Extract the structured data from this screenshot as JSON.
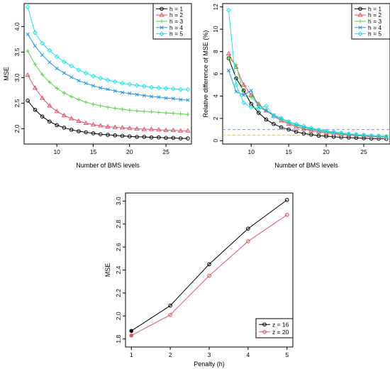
{
  "chart_data": [
    {
      "type": "line",
      "title": "",
      "xlabel": "Number of BMS levels",
      "ylabel": "MSE",
      "xlim": [
        5.5,
        28.5
      ],
      "ylim": [
        1.7,
        4.45
      ],
      "xticks": [
        10,
        15,
        20,
        25
      ],
      "yticks": [
        2.0,
        2.5,
        3.0,
        3.5,
        4.0
      ],
      "ytick_labels": [
        "2.0",
        "2.5",
        "3.0",
        "3.5",
        "4.0"
      ],
      "legend_position": "top-right",
      "x": [
        6,
        7,
        8,
        9,
        10,
        11,
        12,
        13,
        14,
        15,
        16,
        17,
        18,
        19,
        20,
        21,
        22,
        23,
        24,
        25,
        26,
        27,
        28
      ],
      "series": [
        {
          "name": "h =  1",
          "color": "#000000",
          "marker": "circle",
          "values": [
            2.55,
            2.37,
            2.24,
            2.14,
            2.07,
            2.02,
            1.98,
            1.95,
            1.93,
            1.91,
            1.89,
            1.88,
            1.87,
            1.86,
            1.85,
            1.84,
            1.84,
            1.83,
            1.83,
            1.82,
            1.82,
            1.81,
            1.81
          ]
        },
        {
          "name": "h =  2",
          "color": "#DF536B",
          "marker": "triangle",
          "values": [
            3.05,
            2.8,
            2.6,
            2.45,
            2.34,
            2.26,
            2.2,
            2.15,
            2.11,
            2.08,
            2.06,
            2.04,
            2.03,
            2.02,
            2.01,
            2.0,
            1.99,
            1.99,
            1.98,
            1.97,
            1.97,
            1.96,
            1.96
          ]
        },
        {
          "name": "h =  3",
          "color": "#61D04F",
          "marker": "plus",
          "values": [
            3.52,
            3.26,
            3.06,
            2.91,
            2.79,
            2.7,
            2.63,
            2.57,
            2.52,
            2.48,
            2.45,
            2.42,
            2.4,
            2.38,
            2.36,
            2.35,
            2.34,
            2.33,
            2.32,
            2.31,
            2.3,
            2.29,
            2.28
          ]
        },
        {
          "name": "h =  4",
          "color": "#2297E6",
          "marker": "cross",
          "values": [
            3.85,
            3.62,
            3.44,
            3.3,
            3.18,
            3.09,
            3.01,
            2.94,
            2.89,
            2.84,
            2.8,
            2.77,
            2.74,
            2.71,
            2.69,
            2.67,
            2.65,
            2.63,
            2.62,
            2.6,
            2.59,
            2.57,
            2.56
          ]
        },
        {
          "name": "h =  5",
          "color": "#28E2E5",
          "marker": "diamond",
          "values": [
            4.38,
            3.88,
            3.67,
            3.53,
            3.41,
            3.31,
            3.23,
            3.15,
            3.09,
            3.03,
            2.99,
            2.95,
            2.92,
            2.89,
            2.87,
            2.85,
            2.83,
            2.81,
            2.8,
            2.79,
            2.78,
            2.77,
            2.77
          ]
        }
      ]
    },
    {
      "type": "line",
      "title": "",
      "xlabel": "Number of BMS levels",
      "ylabel": "Relative difference of MSE (%)",
      "xlim": [
        6.2,
        28.5
      ],
      "ylim": [
        -0.3,
        12.3
      ],
      "xticks": [
        10,
        15,
        20,
        25
      ],
      "yticks": [
        0,
        2,
        4,
        6,
        8,
        10,
        12
      ],
      "ytick_labels": [
        "0",
        "2",
        "4",
        "6",
        "8",
        "10",
        "12"
      ],
      "reference_lines": [
        {
          "y": 1.0,
          "color": "#9E80D8"
        },
        {
          "y": 0.5,
          "color": "#E8C04A"
        }
      ],
      "legend_position": "top-right",
      "x": [
        7,
        8,
        9,
        10,
        11,
        12,
        13,
        14,
        15,
        16,
        17,
        18,
        19,
        20,
        21,
        22,
        23,
        24,
        25,
        26,
        27,
        28
      ],
      "series": [
        {
          "name": "h =  1",
          "color": "#000000",
          "marker": "circle",
          "values": [
            7.4,
            5.6,
            4.5,
            3.3,
            2.5,
            1.9,
            1.5,
            1.2,
            1.0,
            0.8,
            0.65,
            0.55,
            0.45,
            0.4,
            0.35,
            0.3,
            0.28,
            0.25,
            0.22,
            0.2,
            0.18,
            0.16
          ]
        },
        {
          "name": "h =  2",
          "color": "#DF536B",
          "marker": "triangle",
          "values": [
            7.8,
            6.6,
            5.0,
            4.1,
            3.3,
            2.7,
            2.2,
            1.8,
            1.5,
            1.25,
            1.05,
            0.9,
            0.8,
            0.7,
            0.62,
            0.55,
            0.5,
            0.45,
            0.4,
            0.36,
            0.33,
            0.3
          ]
        },
        {
          "name": "h =  3",
          "color": "#61D04F",
          "marker": "plus",
          "values": [
            7.4,
            6.8,
            4.2,
            3.9,
            3.2,
            2.7,
            2.3,
            1.9,
            1.6,
            1.35,
            1.15,
            1.0,
            0.88,
            0.78,
            0.7,
            0.62,
            0.56,
            0.5,
            0.45,
            0.41,
            0.37,
            0.34
          ]
        },
        {
          "name": "h =  4",
          "color": "#2297E6",
          "marker": "cross",
          "values": [
            6.3,
            4.4,
            4.1,
            4.5,
            3.0,
            2.7,
            2.3,
            2.0,
            1.7,
            1.45,
            1.25,
            1.08,
            0.95,
            0.84,
            0.75,
            0.67,
            0.6,
            0.54,
            0.49,
            0.44,
            0.4,
            0.37
          ]
        },
        {
          "name": "h =  5",
          "color": "#28E2E5",
          "marker": "diamond",
          "values": [
            11.7,
            5.0,
            3.4,
            3.0,
            2.9,
            3.1,
            2.2,
            2.0,
            1.7,
            1.5,
            1.3,
            1.12,
            0.98,
            0.87,
            0.78,
            0.7,
            0.62,
            0.56,
            0.51,
            0.46,
            0.42,
            0.38
          ]
        }
      ]
    },
    {
      "type": "line",
      "title": "",
      "xlabel": "Penalty (h)",
      "ylabel": "MSE",
      "xlim": [
        0.85,
        5.15
      ],
      "ylim": [
        1.73,
        3.07
      ],
      "xticks": [
        1,
        2,
        3,
        4,
        5
      ],
      "yticks": [
        1.8,
        2.0,
        2.2,
        2.4,
        2.6,
        2.8,
        3.0
      ],
      "ytick_labels": [
        "1.8",
        "2.0",
        "2.2",
        "2.4",
        "2.6",
        "2.8",
        "3.0"
      ],
      "legend_position": "bottom-right",
      "x": [
        1,
        2,
        3,
        4,
        5
      ],
      "series": [
        {
          "name": "z =  16",
          "color": "#000000",
          "marker": "circle",
          "values": [
            1.87,
            2.09,
            2.45,
            2.76,
            3.01
          ]
        },
        {
          "name": "z =  20",
          "color": "#DF536B",
          "marker": "circle",
          "values": [
            1.83,
            2.01,
            2.35,
            2.65,
            2.88
          ]
        }
      ]
    }
  ]
}
